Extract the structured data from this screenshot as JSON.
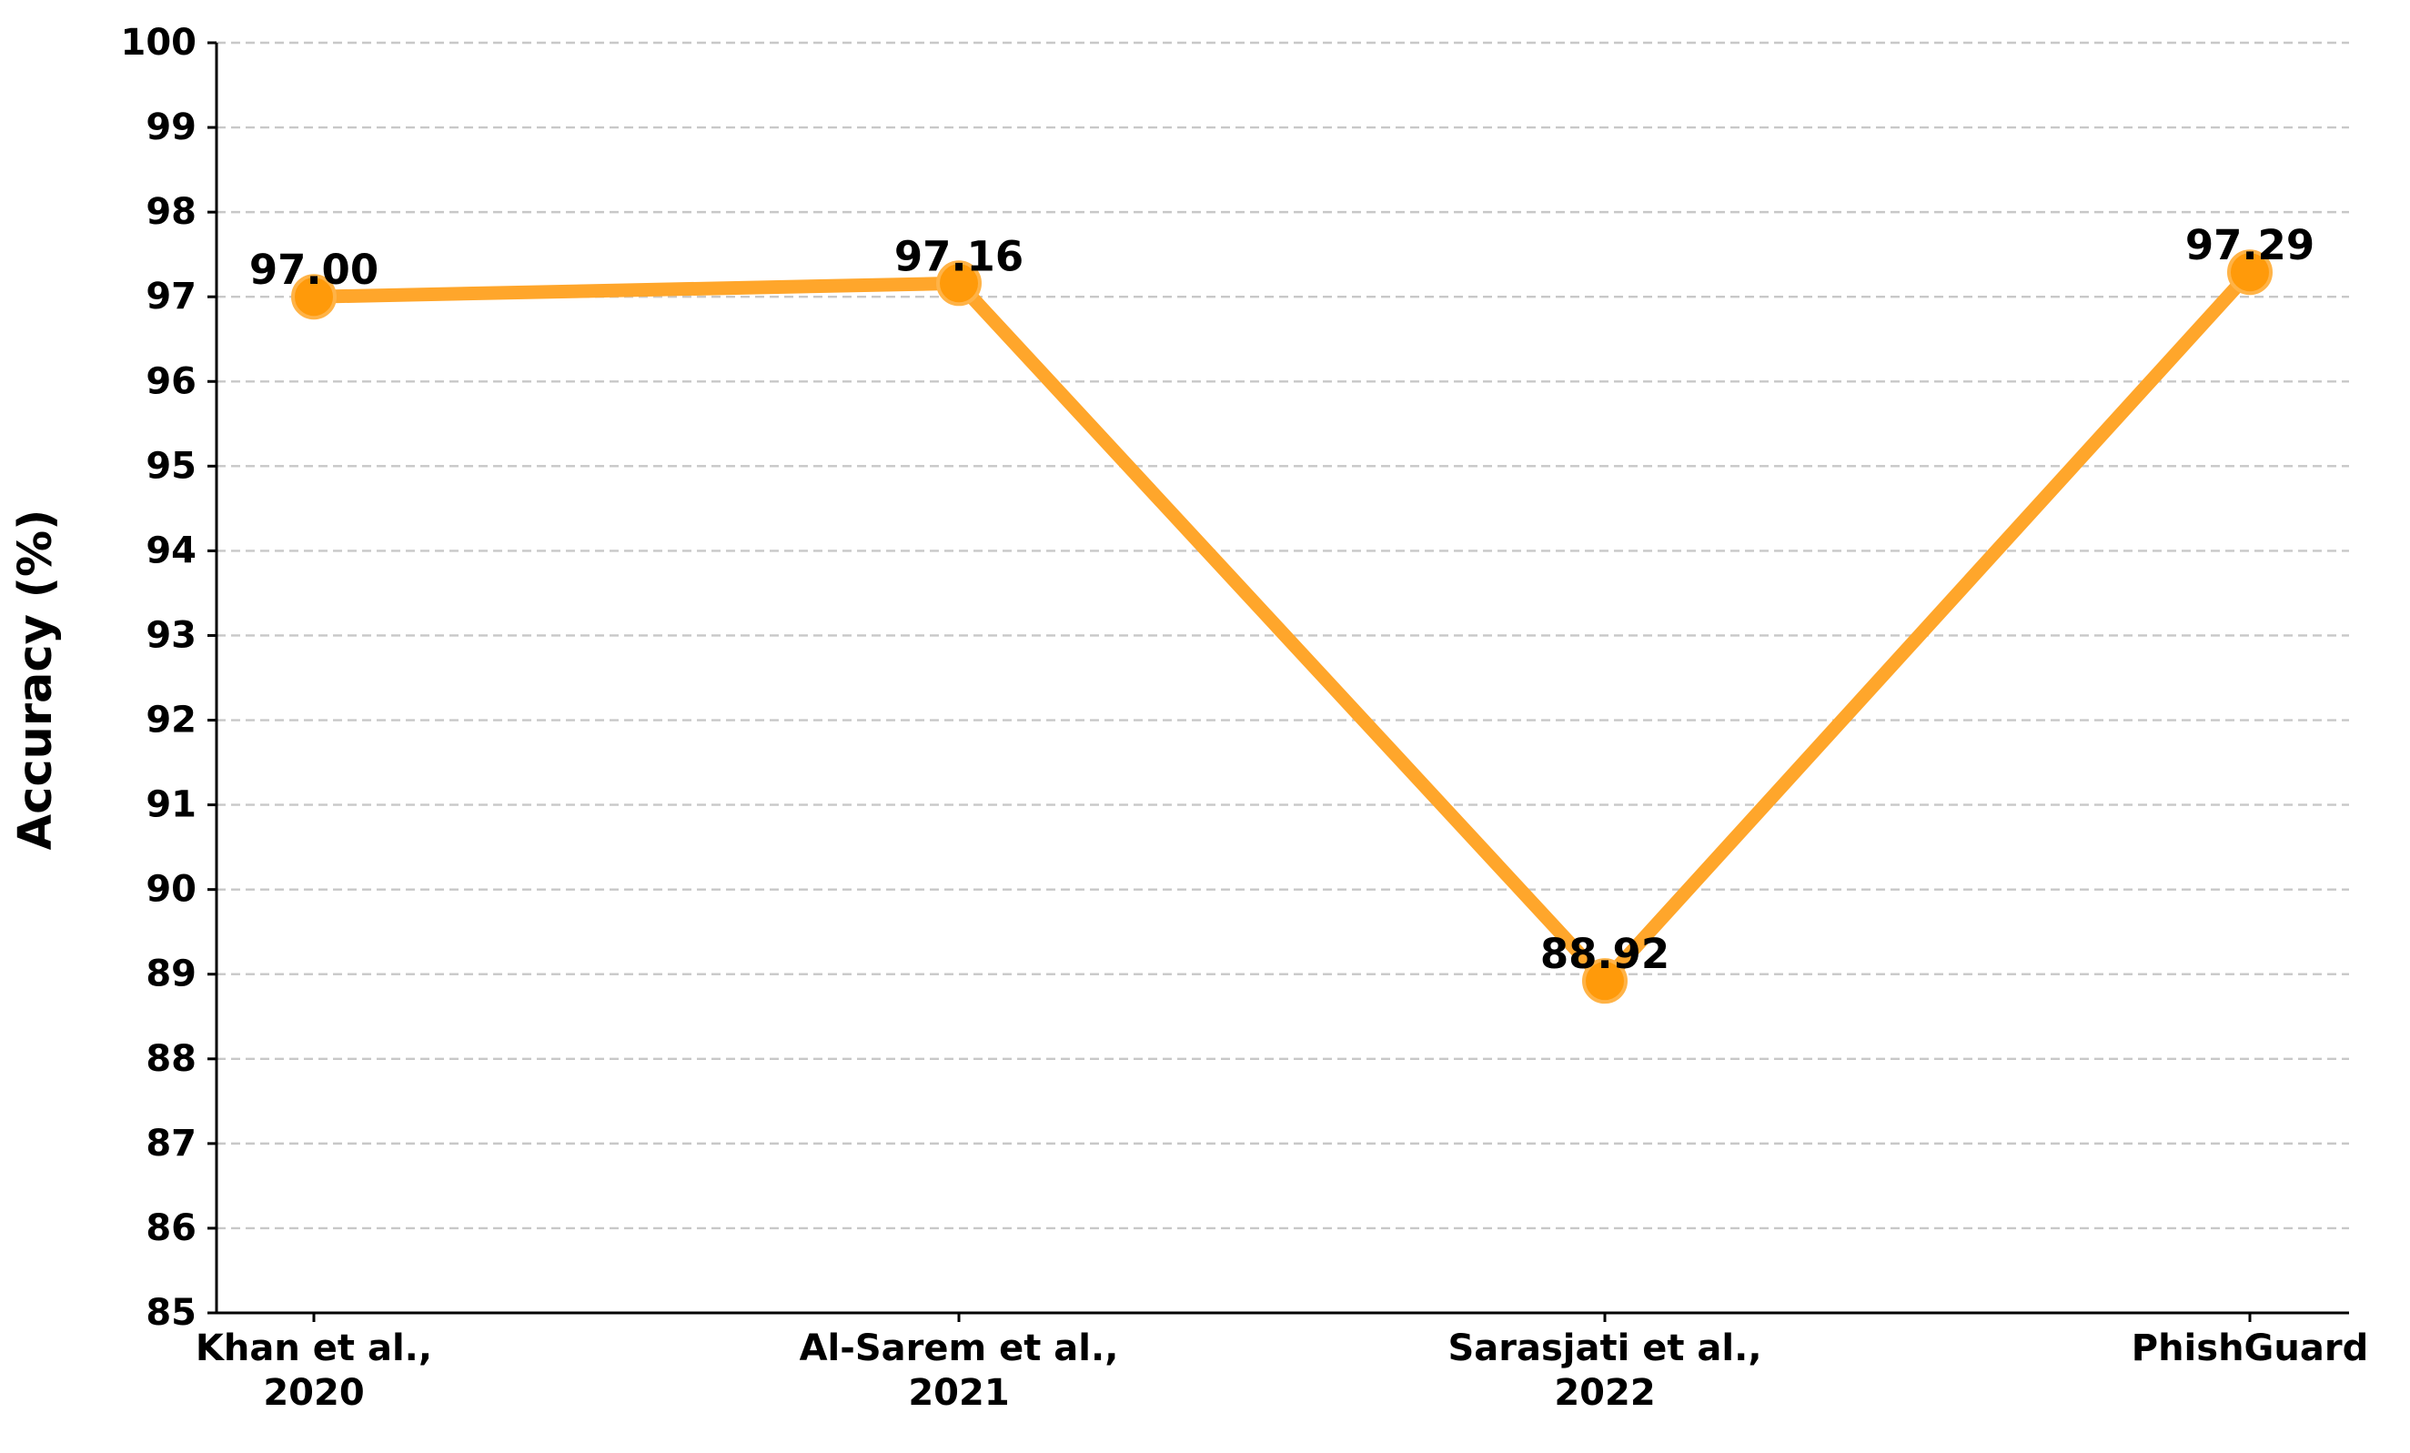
{
  "chart_data": {
    "type": "line",
    "title": "",
    "xlabel": "",
    "ylabel": "Accuracy (%)",
    "categories": [
      [
        "Khan et al.,",
        "2020"
      ],
      [
        "Al-Sarem et al.,",
        "2021"
      ],
      [
        "Sarasjati et al.,",
        "2022"
      ],
      [
        "PhishGuard"
      ]
    ],
    "series": [
      {
        "values": [
          97.0,
          97.16,
          88.92,
          97.29
        ],
        "labels": [
          "97.00",
          "97.16",
          "88.92",
          "97.29"
        ]
      }
    ],
    "ylim": [
      85,
      100
    ],
    "yticks": [
      85,
      86,
      87,
      88,
      89,
      90,
      91,
      92,
      93,
      94,
      95,
      96,
      97,
      98,
      99,
      100
    ],
    "grid": "horizontal-dashed",
    "legend": "none",
    "colors": {
      "line": "#FFA62B",
      "marker_fill": "#FF9A0A",
      "marker_edge": "#FFB347"
    }
  }
}
